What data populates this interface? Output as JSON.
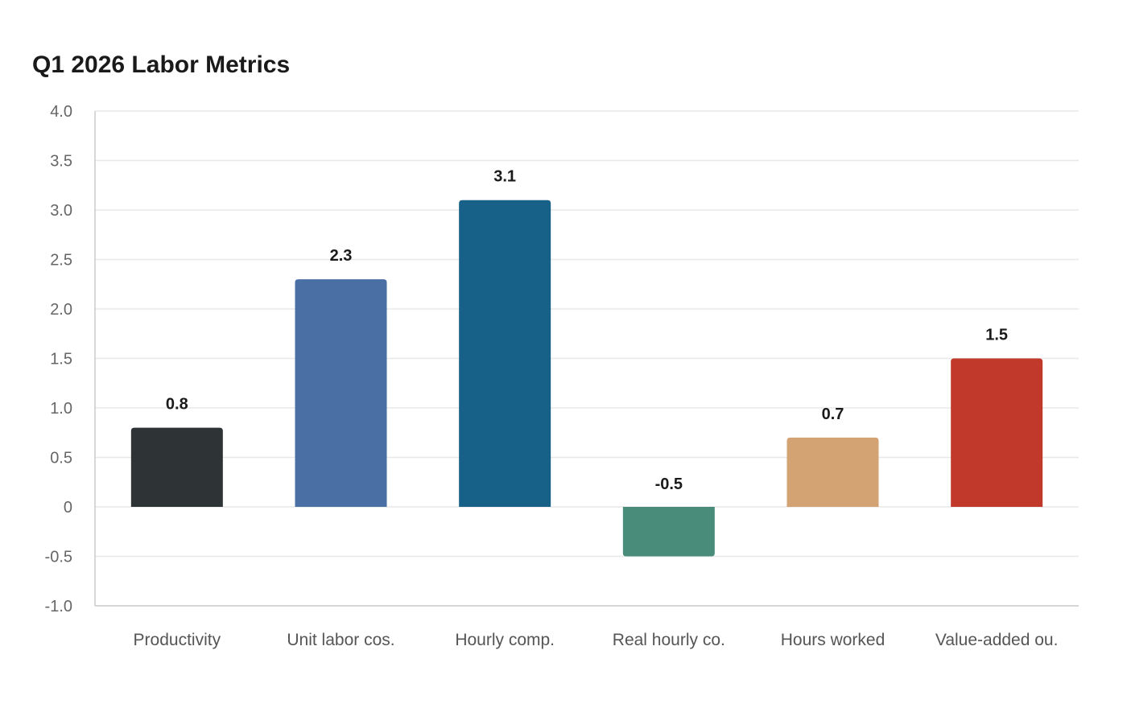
{
  "chart_data": {
    "type": "bar",
    "title": "Q1 2026 Labor Metrics",
    "xlabel": "",
    "ylabel": "",
    "categories": [
      "Productivity",
      "Unit labor cos.",
      "Hourly comp.",
      "Real hourly co.",
      "Hours worked",
      "Value-added ou."
    ],
    "values": [
      0.8,
      2.3,
      3.1,
      -0.5,
      0.7,
      1.5
    ],
    "data_labels": [
      "0.8",
      "2.3",
      "3.1",
      "-0.5",
      "0.7",
      "1.5"
    ],
    "colors": [
      "#2e3436",
      "#4a6fa5",
      "#176087",
      "#4a8c7a",
      "#d4a373",
      "#c0392b"
    ],
    "ylim": [
      -1.0,
      4.0
    ],
    "yticks": [
      -1.0,
      -0.5,
      0,
      0.5,
      1.0,
      1.5,
      2.0,
      2.5,
      3.0,
      3.5,
      4.0
    ],
    "ytick_labels": [
      "-1.0",
      "-0.5",
      "0",
      "0.5",
      "1.0",
      "1.5",
      "2.0",
      "2.5",
      "3.0",
      "3.5",
      "4.0"
    ],
    "grid": true,
    "legend": "none"
  }
}
